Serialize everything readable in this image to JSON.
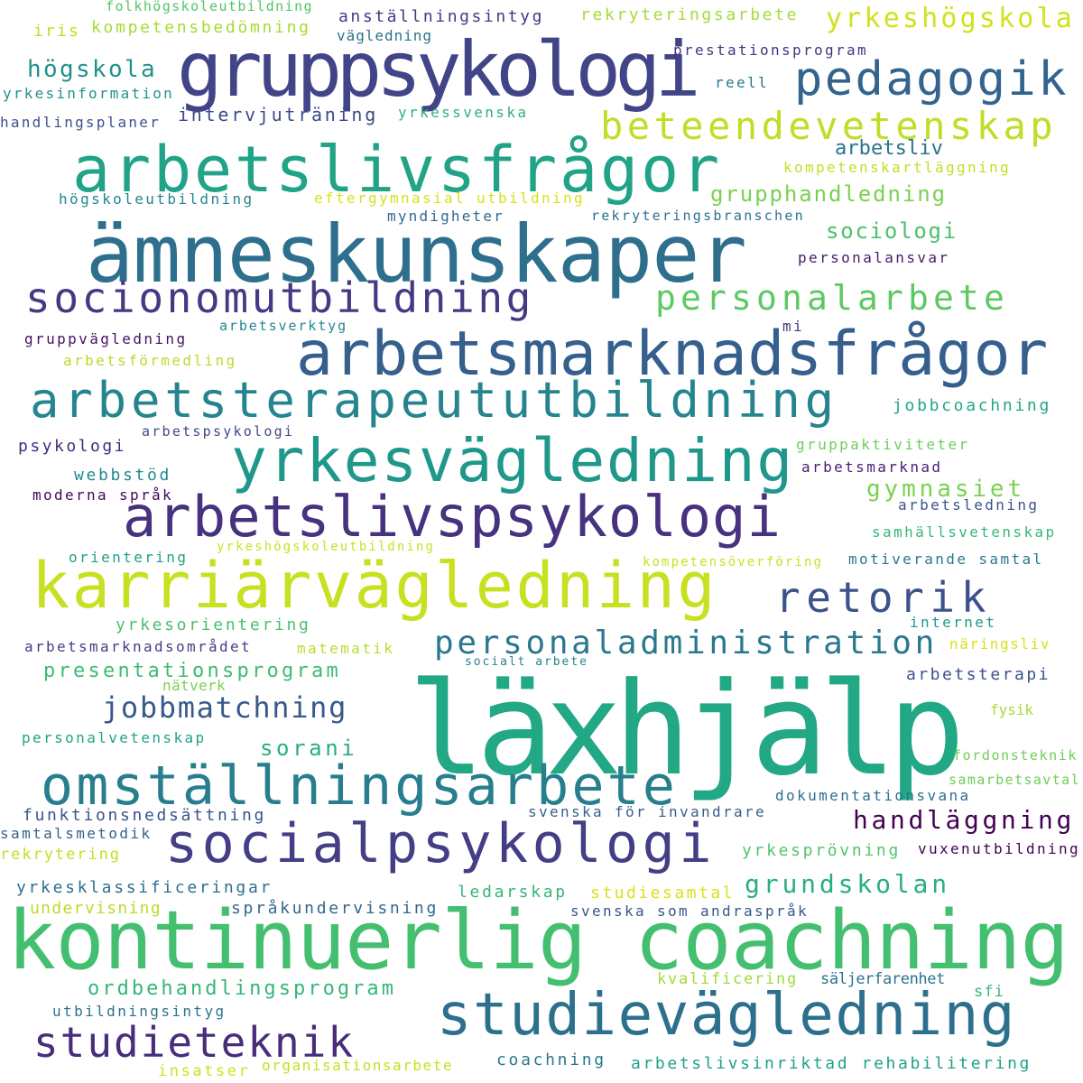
{
  "words": [
    {
      "text": "läxhjälp",
      "color": "#22a884"
    },
    {
      "text": "kontinuerlig coachning",
      "color": "#44bf70"
    },
    {
      "text": "ämneskunskaper",
      "color": "#2f6f8e"
    },
    {
      "text": "gruppsykologi",
      "color": "#414487"
    },
    {
      "text": "arbetslivsfrågor",
      "color": "#20a386"
    },
    {
      "text": "karriärvägledning",
      "color": "#c7e020"
    },
    {
      "text": "arbetsmarknadsfrågor",
      "color": "#355f8d"
    },
    {
      "text": "arbetsterapeututbildning",
      "color": "#25848e"
    },
    {
      "text": "yrkesvägledning",
      "color": "#1f988b"
    },
    {
      "text": "arbetslivspsykologi",
      "color": "#46327e"
    },
    {
      "text": "socialpsykologi",
      "color": "#433e85"
    },
    {
      "text": "omställningsarbete",
      "color": "#277f8e"
    },
    {
      "text": "studievägledning",
      "color": "#2d708e"
    },
    {
      "text": "socionomutbildning",
      "color": "#443983"
    },
    {
      "text": "pedagogik",
      "color": "#32648e"
    },
    {
      "text": "beteendevetenskap",
      "color": "#bddf26"
    },
    {
      "text": "yrkeshögskola",
      "color": "#d2e21b"
    },
    {
      "text": "personalarbete",
      "color": "#5ec962"
    },
    {
      "text": "retorik",
      "color": "#3b528b"
    },
    {
      "text": "personaladministration",
      "color": "#2a788e"
    },
    {
      "text": "studieteknik",
      "color": "#472d7b"
    },
    {
      "text": "jobbmatchning",
      "color": "#38598c"
    },
    {
      "text": "handläggning",
      "color": "#440154"
    },
    {
      "text": "gymnasiet",
      "color": "#7ad151"
    },
    {
      "text": "presentationsprogram",
      "color": "#3fbc73"
    },
    {
      "text": "ordbehandlingsprogram",
      "color": "#35b779"
    },
    {
      "text": "grundskolan",
      "color": "#29af7f"
    },
    {
      "text": "sorani",
      "color": "#28ae80"
    },
    {
      "text": "högskola",
      "color": "#21918c"
    },
    {
      "text": "grupphandledning",
      "color": "#7ad151"
    },
    {
      "text": "sociologi",
      "color": "#4ac16d"
    },
    {
      "text": "arbetsliv",
      "color": "#2c728e"
    },
    {
      "text": "intervjuträning",
      "color": "#3e4989"
    },
    {
      "text": "folkhögskoleutbildning",
      "color": "#52c569"
    },
    {
      "text": "iris",
      "color": "#bddf26"
    },
    {
      "text": "kompetensbedömning",
      "color": "#a8db34"
    },
    {
      "text": "anställningsintyg",
      "color": "#443983"
    },
    {
      "text": "vägledning",
      "color": "#2c728e"
    },
    {
      "text": "rekryteringsarbete",
      "color": "#a5db36"
    },
    {
      "text": "prestationsprogram",
      "color": "#46337f"
    },
    {
      "text": "reell",
      "color": "#2a788e"
    },
    {
      "text": "yrkesinformation",
      "color": "#21918c"
    },
    {
      "text": "yrkessvenska",
      "color": "#2db27d"
    },
    {
      "text": "handlingsplaner",
      "color": "#3b528b"
    },
    {
      "text": "kompetenskartläggning",
      "color": "#c2df23"
    },
    {
      "text": "högskoleutbildning",
      "color": "#25848e"
    },
    {
      "text": "eftergymnasial utbildning",
      "color": "#d8e219"
    },
    {
      "text": "myndigheter",
      "color": "#31688e"
    },
    {
      "text": "rekryteringsbranschen",
      "color": "#2d708e"
    },
    {
      "text": "personalansvar",
      "color": "#481a6c"
    },
    {
      "text": "mi",
      "color": "#453781"
    },
    {
      "text": "arbetsverktyg",
      "color": "#25858e"
    },
    {
      "text": "gruppvägledning",
      "color": "#471164"
    },
    {
      "text": "arbetsförmedling",
      "color": "#b5de2b"
    },
    {
      "text": "jobbcoachning",
      "color": "#21a685"
    },
    {
      "text": "arbetspsykologi",
      "color": "#3e4989"
    },
    {
      "text": "psykologi",
      "color": "#472a7a"
    },
    {
      "text": "gruppaktiviteter",
      "color": "#6ccd5a"
    },
    {
      "text": "webbstöd",
      "color": "#23888e"
    },
    {
      "text": "arbetsmarknad",
      "color": "#482173"
    },
    {
      "text": "moderna språk",
      "color": "#450559"
    },
    {
      "text": "arbetsledning",
      "color": "#3a548c"
    },
    {
      "text": "samhällsvetenskap",
      "color": "#35b779"
    },
    {
      "text": "orientering",
      "color": "#1f9e89"
    },
    {
      "text": "yrkeshögskoleutbildning",
      "color": "#cae11f"
    },
    {
      "text": "kompetensöverföring",
      "color": "#cae11f"
    },
    {
      "text": "motiverande samtal",
      "color": "#2a788e"
    },
    {
      "text": "yrkesorientering",
      "color": "#48c16e"
    },
    {
      "text": "internet",
      "color": "#1e9b8a"
    },
    {
      "text": "arbetsmarknadsområdet",
      "color": "#433e85"
    },
    {
      "text": "matematik",
      "color": "#b5de2b"
    },
    {
      "text": "näringsliv",
      "color": "#d8e219"
    },
    {
      "text": "socialt arbete",
      "color": "#26828e"
    },
    {
      "text": "nätverk",
      "color": "#7ad151"
    },
    {
      "text": "arbetsterapi",
      "color": "#3b528b"
    },
    {
      "text": "fysik",
      "color": "#a8db34"
    },
    {
      "text": "personalvetenskap",
      "color": "#20a386"
    },
    {
      "text": "fordonsteknik",
      "color": "#6ece58"
    },
    {
      "text": "samarbetsavtal",
      "color": "#6ece58"
    },
    {
      "text": "dokumentationsvana",
      "color": "#2d708e"
    },
    {
      "text": "funktionsnedsättning",
      "color": "#3b528b"
    },
    {
      "text": "svenska för invandrare",
      "color": "#355f8d"
    },
    {
      "text": "samtalsmetodik",
      "color": "#34618d"
    },
    {
      "text": "rekrytering",
      "color": "#c2df23"
    },
    {
      "text": "yrkesprövning",
      "color": "#52c569"
    },
    {
      "text": "vuxenutbildning",
      "color": "#440154"
    },
    {
      "text": "yrkesklassificeringar",
      "color": "#2d708e"
    },
    {
      "text": "ledarskap",
      "color": "#35b779"
    },
    {
      "text": "studiesamtal",
      "color": "#d8e219"
    },
    {
      "text": "undervisning",
      "color": "#b8de29"
    },
    {
      "text": "språkundervisning",
      "color": "#31688e"
    },
    {
      "text": "svenska som andraspråk",
      "color": "#39568c"
    },
    {
      "text": "kvalificering",
      "color": "#a2da37"
    },
    {
      "text": "säljerfarenhet",
      "color": "#2c728e"
    },
    {
      "text": "utbildningsintyg",
      "color": "#2c728e"
    },
    {
      "text": "sfi",
      "color": "#35b779"
    },
    {
      "text": "coachning",
      "color": "#2a788e"
    },
    {
      "text": "insatser",
      "color": "#d0e11c"
    },
    {
      "text": "organisationsarbete",
      "color": "#c5e021"
    },
    {
      "text": "arbetslivsinriktad rehabilitering",
      "color": "#1fa188"
    }
  ]
}
